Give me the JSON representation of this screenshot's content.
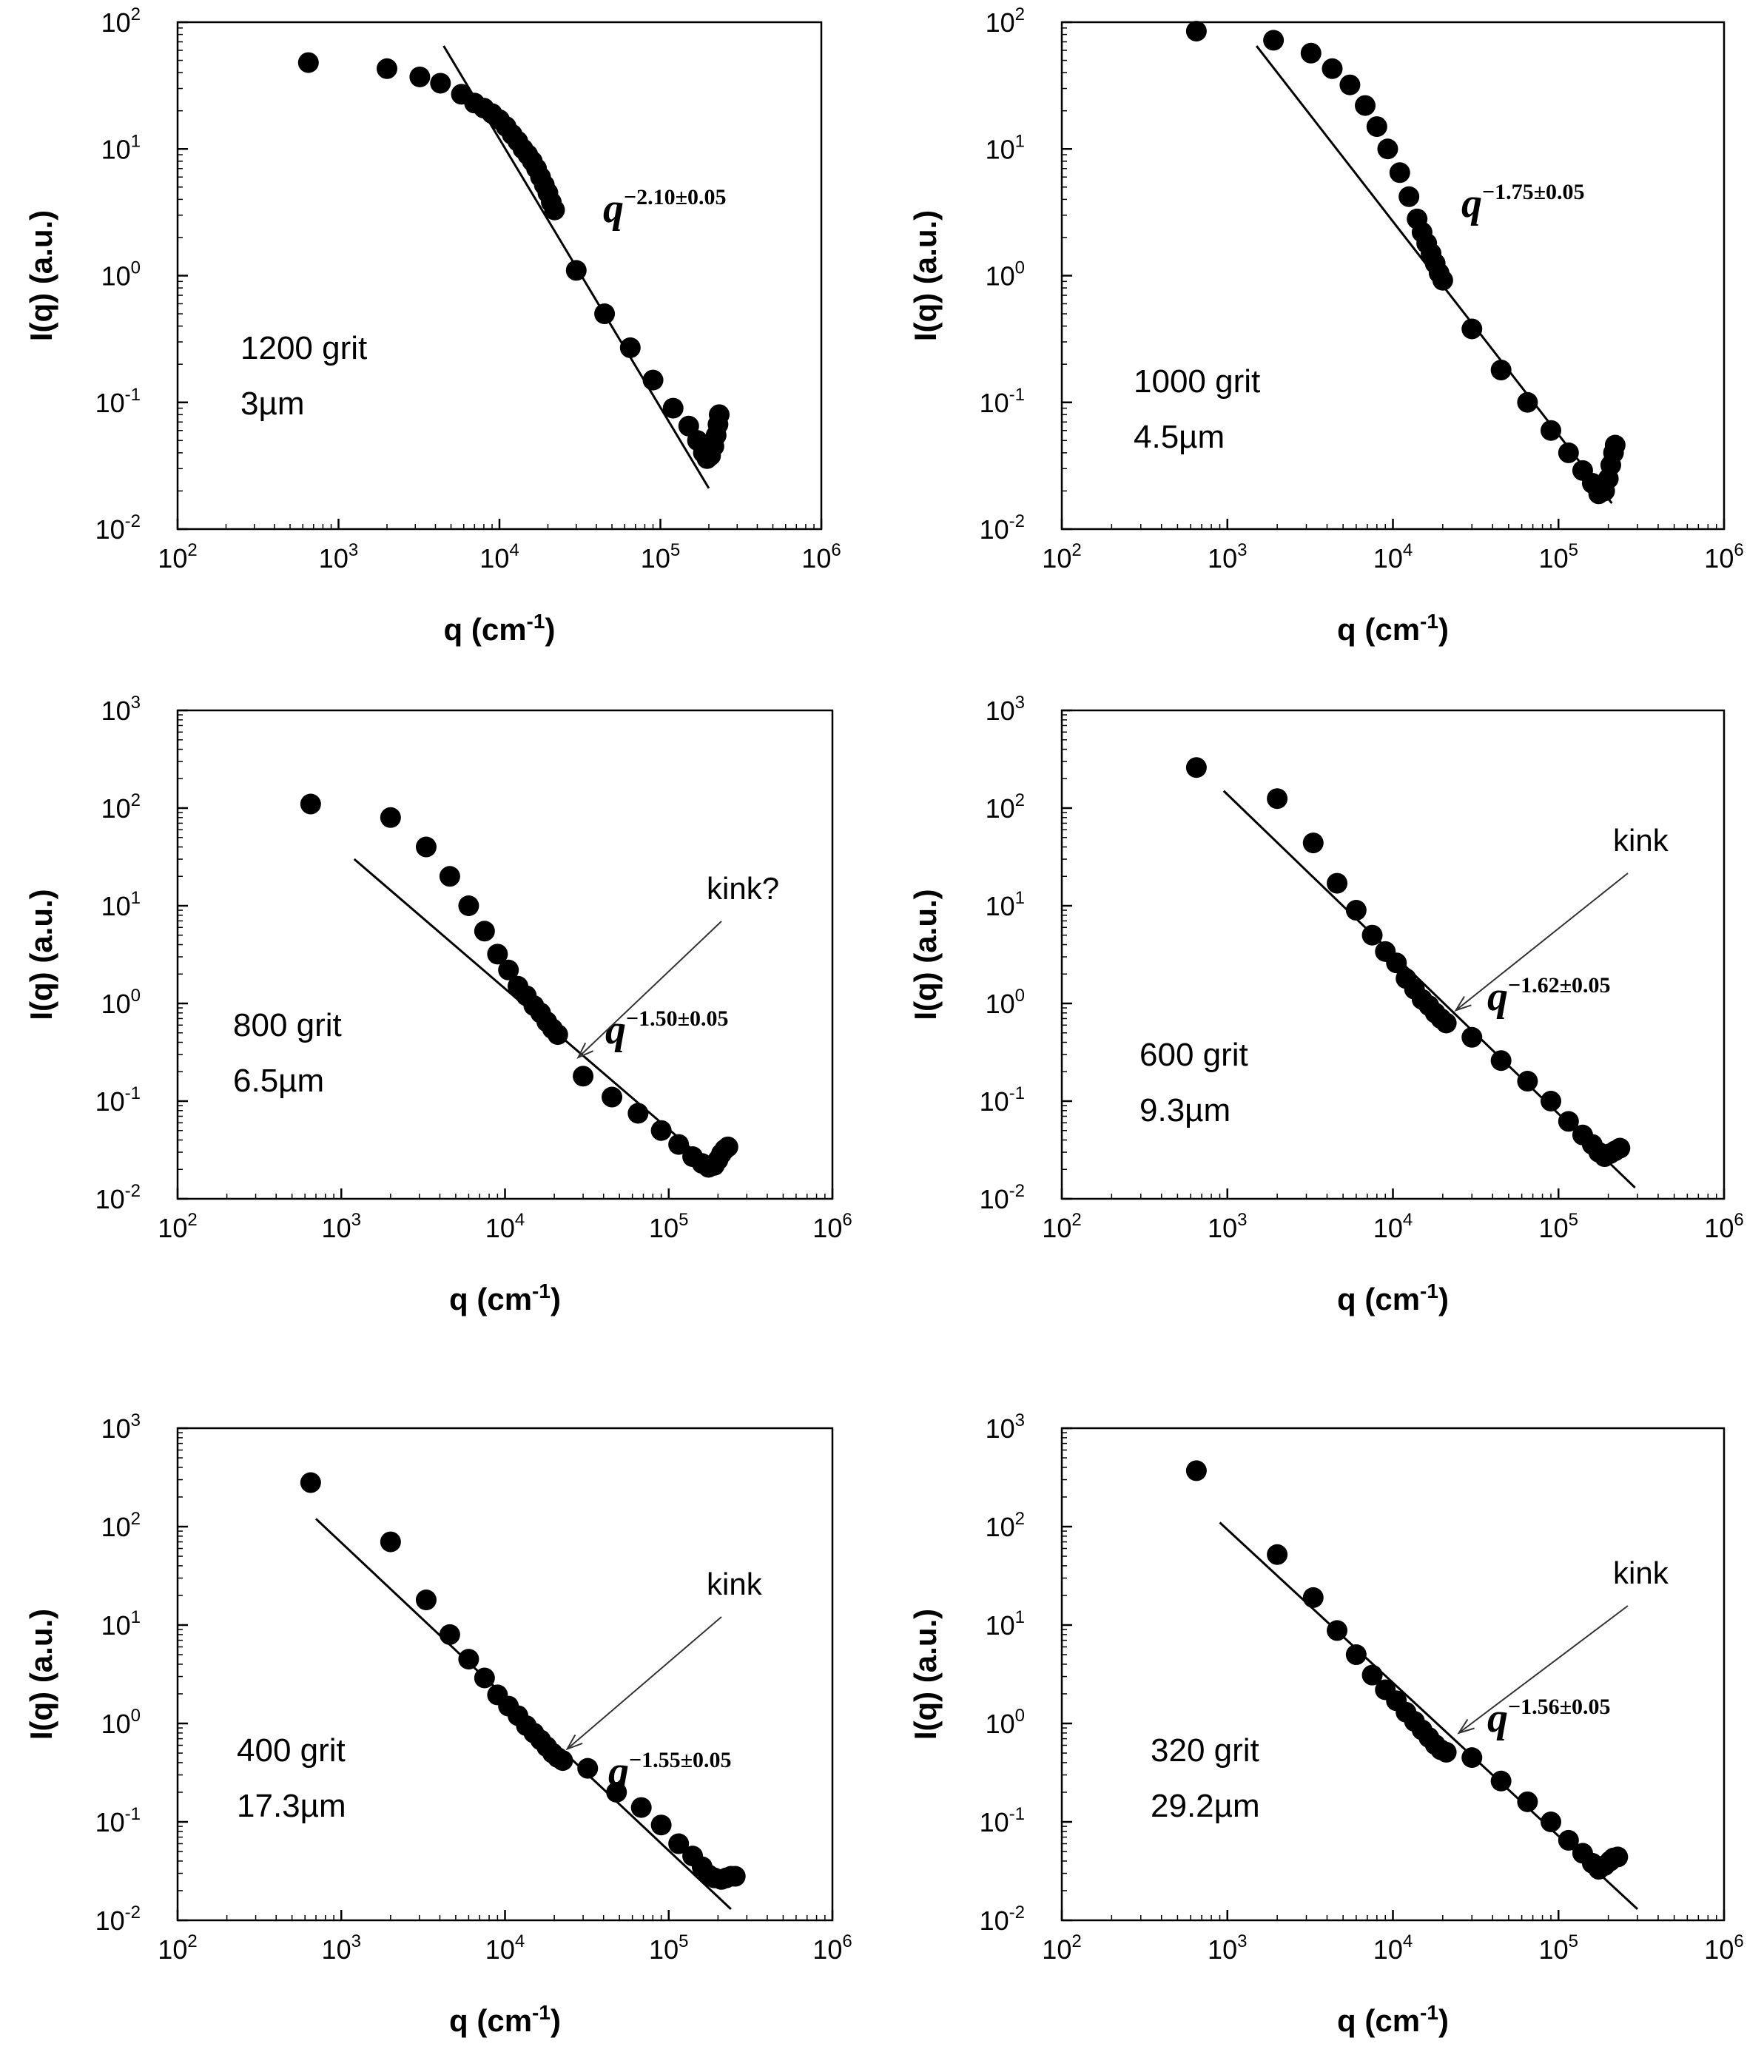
{
  "chart_data": [
    {
      "type": "scatter",
      "sample": "1200 grit",
      "size": "3µm",
      "xlabel": "q (cm-1)",
      "ylabel": "I(q) (a.u.)",
      "xscale": "log",
      "yscale": "log",
      "xlim": [
        100,
        1000000
      ],
      "ylim": [
        0.01,
        100
      ],
      "points": [
        [
          650,
          48
        ],
        [
          2000,
          43
        ],
        [
          3200,
          37
        ],
        [
          4300,
          33
        ],
        [
          5800,
          27
        ],
        [
          7000,
          23
        ],
        [
          8000,
          21
        ],
        [
          9000,
          19
        ],
        [
          10000,
          17
        ],
        [
          11000,
          15
        ],
        [
          12000,
          13
        ],
        [
          13000,
          11.5
        ],
        [
          14000,
          10
        ],
        [
          15000,
          9
        ],
        [
          16000,
          8
        ],
        [
          17000,
          7
        ],
        [
          18000,
          6
        ],
        [
          19000,
          5.2
        ],
        [
          20000,
          4.5
        ],
        [
          21000,
          3.8
        ],
        [
          22000,
          3.3
        ],
        [
          30000,
          1.1
        ],
        [
          45000,
          0.5
        ],
        [
          65000,
          0.27
        ],
        [
          90000,
          0.15
        ],
        [
          120000,
          0.09
        ],
        [
          150000,
          0.065
        ],
        [
          170000,
          0.05
        ],
        [
          185000,
          0.04
        ],
        [
          195000,
          0.036
        ],
        [
          205000,
          0.038
        ],
        [
          215000,
          0.045
        ],
        [
          222000,
          0.055
        ],
        [
          228000,
          0.067
        ],
        [
          232000,
          0.08
        ]
      ],
      "fit_line": [
        [
          4500,
          65
        ],
        [
          200000,
          0.021
        ]
      ],
      "fit_label": {
        "base": "q",
        "exponent": "−2.10±0.05"
      }
    },
    {
      "type": "scatter",
      "sample": "1000 grit",
      "size": "4.5µm",
      "xlabel": "q (cm-1)",
      "ylabel": "I(q) (a.u.)",
      "xscale": "log",
      "yscale": "log",
      "xlim": [
        100,
        1000000
      ],
      "ylim": [
        0.01,
        100
      ],
      "points": [
        [
          650,
          85
        ],
        [
          1900,
          72
        ],
        [
          3200,
          57
        ],
        [
          4300,
          43
        ],
        [
          5500,
          32
        ],
        [
          6800,
          22
        ],
        [
          8000,
          15
        ],
        [
          9300,
          10
        ],
        [
          11000,
          6.5
        ],
        [
          12500,
          4.2
        ],
        [
          14000,
          2.8
        ],
        [
          15000,
          2.2
        ],
        [
          16000,
          1.8
        ],
        [
          17000,
          1.5
        ],
        [
          18000,
          1.25
        ],
        [
          19000,
          1.05
        ],
        [
          20000,
          0.92
        ],
        [
          30000,
          0.38
        ],
        [
          45000,
          0.18
        ],
        [
          65000,
          0.1
        ],
        [
          90000,
          0.06
        ],
        [
          115000,
          0.04
        ],
        [
          140000,
          0.029
        ],
        [
          160000,
          0.023
        ],
        [
          175000,
          0.019
        ],
        [
          190000,
          0.02
        ],
        [
          200000,
          0.025
        ],
        [
          207000,
          0.032
        ],
        [
          215000,
          0.04
        ],
        [
          220000,
          0.046
        ]
      ],
      "fit_line": [
        [
          1500,
          65
        ],
        [
          210000,
          0.016
        ]
      ],
      "fit_label": {
        "base": "q",
        "exponent": "−1.75±0.05"
      }
    },
    {
      "type": "scatter",
      "sample": "800 grit",
      "size": "6.5µm",
      "xlabel": "q (cm-1)",
      "ylabel": "I(q) (a.u.)",
      "xscale": "log",
      "yscale": "log",
      "xlim": [
        100,
        1000000
      ],
      "ylim": [
        0.01,
        1000
      ],
      "points": [
        [
          650,
          110
        ],
        [
          2000,
          80
        ],
        [
          3300,
          40
        ],
        [
          4600,
          20
        ],
        [
          6000,
          10
        ],
        [
          7500,
          5.5
        ],
        [
          9000,
          3.2
        ],
        [
          10500,
          2.2
        ],
        [
          12000,
          1.5
        ],
        [
          13500,
          1.2
        ],
        [
          15000,
          0.95
        ],
        [
          16500,
          0.8
        ],
        [
          18000,
          0.65
        ],
        [
          19500,
          0.55
        ],
        [
          21000,
          0.48
        ],
        [
          30000,
          0.18
        ],
        [
          45000,
          0.11
        ],
        [
          65000,
          0.075
        ],
        [
          90000,
          0.05
        ],
        [
          115000,
          0.036
        ],
        [
          140000,
          0.027
        ],
        [
          160000,
          0.023
        ],
        [
          175000,
          0.021
        ],
        [
          190000,
          0.022
        ],
        [
          200000,
          0.025
        ],
        [
          210000,
          0.029
        ],
        [
          220000,
          0.032
        ],
        [
          230000,
          0.034
        ]
      ],
      "fit_line": [
        [
          1200,
          30
        ],
        [
          200000,
          0.019
        ]
      ],
      "fit_label": {
        "base": "q",
        "exponent": "−1.50±0.05"
      },
      "annotation": {
        "text": "kink?",
        "arrow_to": [
          28000,
          0.28
        ]
      }
    },
    {
      "type": "scatter",
      "sample": "600 grit",
      "size": "9.3µm",
      "xlabel": "q (cm-1)",
      "ylabel": "I(q) (a.u.)",
      "xscale": "log",
      "yscale": "log",
      "xlim": [
        100,
        1000000
      ],
      "ylim": [
        0.01,
        1000
      ],
      "points": [
        [
          650,
          260
        ],
        [
          2000,
          125
        ],
        [
          3300,
          44
        ],
        [
          4600,
          17
        ],
        [
          6000,
          9
        ],
        [
          7500,
          5
        ],
        [
          9000,
          3.4
        ],
        [
          10500,
          2.6
        ],
        [
          12000,
          1.8
        ],
        [
          13500,
          1.4
        ],
        [
          15000,
          1.1
        ],
        [
          16500,
          0.95
        ],
        [
          18000,
          0.8
        ],
        [
          19500,
          0.7
        ],
        [
          21000,
          0.63
        ],
        [
          30000,
          0.45
        ],
        [
          45000,
          0.26
        ],
        [
          65000,
          0.16
        ],
        [
          90000,
          0.1
        ],
        [
          115000,
          0.062
        ],
        [
          140000,
          0.045
        ],
        [
          160000,
          0.036
        ],
        [
          175000,
          0.03
        ],
        [
          190000,
          0.027
        ],
        [
          205000,
          0.029
        ],
        [
          220000,
          0.031
        ],
        [
          235000,
          0.033
        ]
      ],
      "fit_line": [
        [
          950,
          150
        ],
        [
          290000,
          0.013
        ]
      ],
      "fit_label": {
        "base": "q",
        "exponent": "−1.62±0.05"
      },
      "annotation": {
        "text": "kink",
        "arrow_to": [
          24000,
          0.85
        ]
      }
    },
    {
      "type": "scatter",
      "sample": "400 grit",
      "size": "17.3µm",
      "xlabel": "q (cm-1)",
      "ylabel": "I(q) (a.u.)",
      "xscale": "log",
      "yscale": "log",
      "xlim": [
        100,
        1000000
      ],
      "ylim": [
        0.01,
        1000
      ],
      "points": [
        [
          650,
          280
        ],
        [
          2000,
          70
        ],
        [
          3300,
          18
        ],
        [
          4600,
          8
        ],
        [
          6000,
          4.5
        ],
        [
          7500,
          2.9
        ],
        [
          9000,
          1.95
        ],
        [
          10500,
          1.5
        ],
        [
          12000,
          1.2
        ],
        [
          13500,
          0.95
        ],
        [
          15000,
          0.8
        ],
        [
          16500,
          0.68
        ],
        [
          18000,
          0.58
        ],
        [
          19500,
          0.5
        ],
        [
          21000,
          0.45
        ],
        [
          22500,
          0.42
        ],
        [
          32000,
          0.35
        ],
        [
          48000,
          0.2
        ],
        [
          68000,
          0.14
        ],
        [
          90000,
          0.093
        ],
        [
          115000,
          0.06
        ],
        [
          140000,
          0.045
        ],
        [
          160000,
          0.035
        ],
        [
          175000,
          0.029
        ],
        [
          190000,
          0.027
        ],
        [
          210000,
          0.026
        ],
        [
          225000,
          0.027
        ],
        [
          240000,
          0.028
        ],
        [
          255000,
          0.028
        ]
      ],
      "fit_line": [
        [
          700,
          120
        ],
        [
          240000,
          0.013
        ]
      ],
      "fit_label": {
        "base": "q",
        "exponent": "−1.55±0.05"
      },
      "annotation": {
        "text": "kink",
        "arrow_to": [
          24000,
          0.55
        ]
      }
    },
    {
      "type": "scatter",
      "sample": "320 grit",
      "size": "29.2µm",
      "xlabel": "q (cm-1)",
      "ylabel": "I(q) (a.u.)",
      "xscale": "log",
      "yscale": "log",
      "xlim": [
        100,
        1000000
      ],
      "ylim": [
        0.01,
        1000
      ],
      "points": [
        [
          650,
          370
        ],
        [
          2000,
          52
        ],
        [
          3300,
          19
        ],
        [
          4600,
          8.8
        ],
        [
          6000,
          5
        ],
        [
          7500,
          3.1
        ],
        [
          9000,
          2.2
        ],
        [
          10500,
          1.7
        ],
        [
          12000,
          1.3
        ],
        [
          13500,
          1.05
        ],
        [
          15000,
          0.86
        ],
        [
          16500,
          0.72
        ],
        [
          18000,
          0.61
        ],
        [
          19500,
          0.54
        ],
        [
          21000,
          0.51
        ],
        [
          30000,
          0.45
        ],
        [
          45000,
          0.26
        ],
        [
          65000,
          0.16
        ],
        [
          90000,
          0.1
        ],
        [
          115000,
          0.065
        ],
        [
          140000,
          0.048
        ],
        [
          160000,
          0.038
        ],
        [
          175000,
          0.033
        ],
        [
          190000,
          0.036
        ],
        [
          205000,
          0.04
        ],
        [
          215000,
          0.043
        ],
        [
          228000,
          0.044
        ]
      ],
      "fit_line": [
        [
          900,
          110
        ],
        [
          300000,
          0.013
        ]
      ],
      "fit_label": {
        "base": "q",
        "exponent": "−1.56±0.05"
      },
      "annotation": {
        "text": "kink",
        "arrow_to": [
          25000,
          0.8
        ]
      }
    }
  ]
}
